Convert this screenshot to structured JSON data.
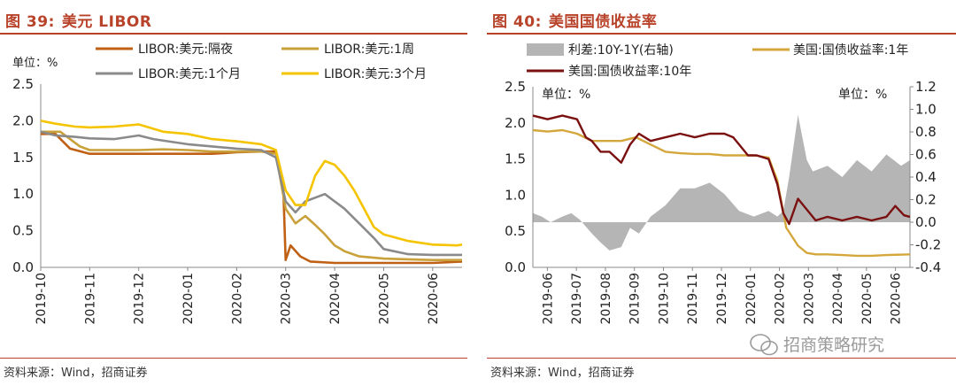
{
  "chart_data": [
    {
      "type": "line",
      "title_number": "图 39:",
      "title": "美元 LIBOR",
      "unit_label": "单位：%",
      "x_labels": [
        "2019-10",
        "2019-11",
        "2019-12",
        "2020-01",
        "2020-02",
        "2020-03",
        "2020-04",
        "2020-05",
        "2020-06"
      ],
      "ylim": [
        0,
        2.5
      ],
      "yticks": [
        "0.0",
        "0.5",
        "1.0",
        "1.5",
        "2.0",
        "2.5"
      ],
      "legend_position": "top",
      "series": [
        {
          "name": "LIBOR:美元:隔夜",
          "color": "#C06014",
          "x": [
            0,
            0.3,
            0.6,
            1,
            1.5,
            2,
            2.5,
            3,
            3.5,
            4,
            4.5,
            4.8,
            4.95,
            5.0,
            5.1,
            5.3,
            5.5,
            6,
            6.5,
            7,
            7.5,
            8,
            8.6
          ],
          "y": [
            1.82,
            1.82,
            1.62,
            1.55,
            1.55,
            1.55,
            1.55,
            1.55,
            1.55,
            1.57,
            1.58,
            1.58,
            1.1,
            0.1,
            0.3,
            0.15,
            0.08,
            0.06,
            0.06,
            0.06,
            0.06,
            0.06,
            0.08
          ]
        },
        {
          "name": "LIBOR:美元:1周",
          "color": "#C9A13A",
          "x": [
            0,
            0.4,
            0.8,
            1,
            1.5,
            2,
            2.5,
            3,
            3.5,
            4,
            4.5,
            4.8,
            5.0,
            5.2,
            5.4,
            5.6,
            5.8,
            6.0,
            6.2,
            6.5,
            7,
            7.5,
            8,
            8.6
          ],
          "y": [
            1.85,
            1.85,
            1.65,
            1.6,
            1.6,
            1.6,
            1.61,
            1.6,
            1.58,
            1.58,
            1.58,
            1.55,
            0.8,
            0.6,
            0.7,
            0.58,
            0.45,
            0.3,
            0.22,
            0.15,
            0.12,
            0.11,
            0.1,
            0.1
          ]
        },
        {
          "name": "LIBOR:美元:1个月",
          "color": "#8A8A8A",
          "x": [
            0,
            0.3,
            0.7,
            1,
            1.5,
            2,
            2.3,
            2.6,
            3,
            3.5,
            4,
            4.5,
            4.8,
            5.0,
            5.2,
            5.4,
            5.6,
            5.8,
            6.0,
            6.2,
            6.5,
            6.8,
            7,
            7.5,
            8,
            8.6
          ],
          "y": [
            1.85,
            1.8,
            1.78,
            1.76,
            1.75,
            1.8,
            1.75,
            1.72,
            1.68,
            1.65,
            1.62,
            1.6,
            1.5,
            0.9,
            0.75,
            0.9,
            0.95,
            1.0,
            0.9,
            0.8,
            0.6,
            0.4,
            0.25,
            0.18,
            0.17,
            0.17
          ]
        },
        {
          "name": "LIBOR:美元:3个月",
          "color": "#F5C400",
          "x": [
            0,
            0.3,
            0.7,
            1,
            1.5,
            2,
            2.5,
            3,
            3.5,
            4,
            4.5,
            4.8,
            5.0,
            5.2,
            5.4,
            5.6,
            5.8,
            6.0,
            6.2,
            6.4,
            6.6,
            6.8,
            7,
            7.5,
            8,
            8.5,
            8.6
          ],
          "y": [
            2.0,
            1.96,
            1.92,
            1.91,
            1.92,
            1.95,
            1.85,
            1.82,
            1.75,
            1.72,
            1.68,
            1.6,
            1.05,
            0.85,
            0.85,
            1.25,
            1.45,
            1.4,
            1.25,
            1.05,
            0.8,
            0.55,
            0.45,
            0.36,
            0.31,
            0.3,
            0.31
          ]
        }
      ],
      "source": "资料来源：Wind，招商证券"
    },
    {
      "type": "line",
      "title_number": "图 40:",
      "title": "美国国债收益率",
      "left_unit": "单位：%",
      "right_unit": "单位：%",
      "x_labels": [
        "2019-06",
        "2019-07",
        "2019-08",
        "2019-09",
        "2019-10",
        "2019-11",
        "2019-12",
        "2020-01",
        "2020-02",
        "2020-03",
        "2020-04",
        "2020-05",
        "2020-06"
      ],
      "ylim": [
        0,
        2.5
      ],
      "yticks": [
        "0.0",
        "0.5",
        "1.0",
        "1.5",
        "2.0",
        "2.5"
      ],
      "y2lim": [
        -0.4,
        1.2
      ],
      "y2ticks": [
        "-0.4",
        "-0.2",
        "0.0",
        "0.2",
        "0.4",
        "0.6",
        "0.8",
        "1.0",
        "1.2"
      ],
      "legend_position": "top",
      "series": [
        {
          "name": "利差:10Y-1Y(右轴)",
          "type": "area",
          "color": "#B5B5B5",
          "axis": "right",
          "x": [
            0,
            0.3,
            0.6,
            1,
            1.3,
            1.6,
            2,
            2.3,
            2.6,
            3,
            3.3,
            3.6,
            4,
            4.5,
            5,
            5.5,
            6,
            6.5,
            7,
            7.5,
            8,
            8.3,
            8.5,
            8.7,
            9,
            9.3,
            9.5,
            10,
            10.5,
            11,
            11.5,
            12,
            12.5,
            12.8
          ],
          "y": [
            0.08,
            0.05,
            0.0,
            0.05,
            0.08,
            0.02,
            -0.1,
            -0.18,
            -0.25,
            -0.22,
            -0.05,
            -0.1,
            0.05,
            0.15,
            0.3,
            0.3,
            0.35,
            0.25,
            0.1,
            0.05,
            0.1,
            0.05,
            0.1,
            0.4,
            0.95,
            0.55,
            0.45,
            0.5,
            0.4,
            0.55,
            0.45,
            0.6,
            0.5,
            0.55
          ]
        },
        {
          "name": "美国:国债收益率:1年",
          "color": "#D4A73C",
          "axis": "left",
          "x": [
            0,
            0.5,
            1,
            1.5,
            2,
            2.5,
            3,
            3.5,
            4,
            4.5,
            5,
            5.5,
            6,
            6.5,
            7,
            7.5,
            8,
            8.3,
            8.6,
            9,
            9.3,
            9.6,
            10,
            10.5,
            11,
            11.5,
            12,
            12.8
          ],
          "y": [
            1.9,
            1.88,
            1.9,
            1.85,
            1.75,
            1.75,
            1.75,
            1.8,
            1.7,
            1.6,
            1.58,
            1.57,
            1.57,
            1.55,
            1.55,
            1.55,
            1.52,
            1.2,
            0.55,
            0.3,
            0.2,
            0.18,
            0.18,
            0.17,
            0.16,
            0.16,
            0.17,
            0.18
          ]
        },
        {
          "name": "美国:国债收益率:10年",
          "color": "#7A1010",
          "axis": "left",
          "x": [
            0,
            0.5,
            1,
            1.5,
            1.8,
            2,
            2.3,
            2.6,
            3,
            3.3,
            3.6,
            4,
            4.5,
            5,
            5.5,
            6,
            6.5,
            6.8,
            7,
            7.3,
            7.6,
            8,
            8.3,
            8.5,
            8.7,
            9,
            9.3,
            9.6,
            10,
            10.5,
            11,
            11.5,
            12,
            12.3,
            12.6,
            12.8
          ],
          "y": [
            2.1,
            2.05,
            2.1,
            2.05,
            1.8,
            1.75,
            1.6,
            1.6,
            1.45,
            1.7,
            1.85,
            1.75,
            1.8,
            1.85,
            1.8,
            1.85,
            1.85,
            1.8,
            1.7,
            1.55,
            1.55,
            1.5,
            1.15,
            0.75,
            0.6,
            0.95,
            0.8,
            0.65,
            0.7,
            0.65,
            0.7,
            0.65,
            0.7,
            0.85,
            0.72,
            0.7
          ]
        }
      ],
      "source": "资料来源：Wind，招商证券",
      "watermark": "招商策略研究"
    }
  ]
}
